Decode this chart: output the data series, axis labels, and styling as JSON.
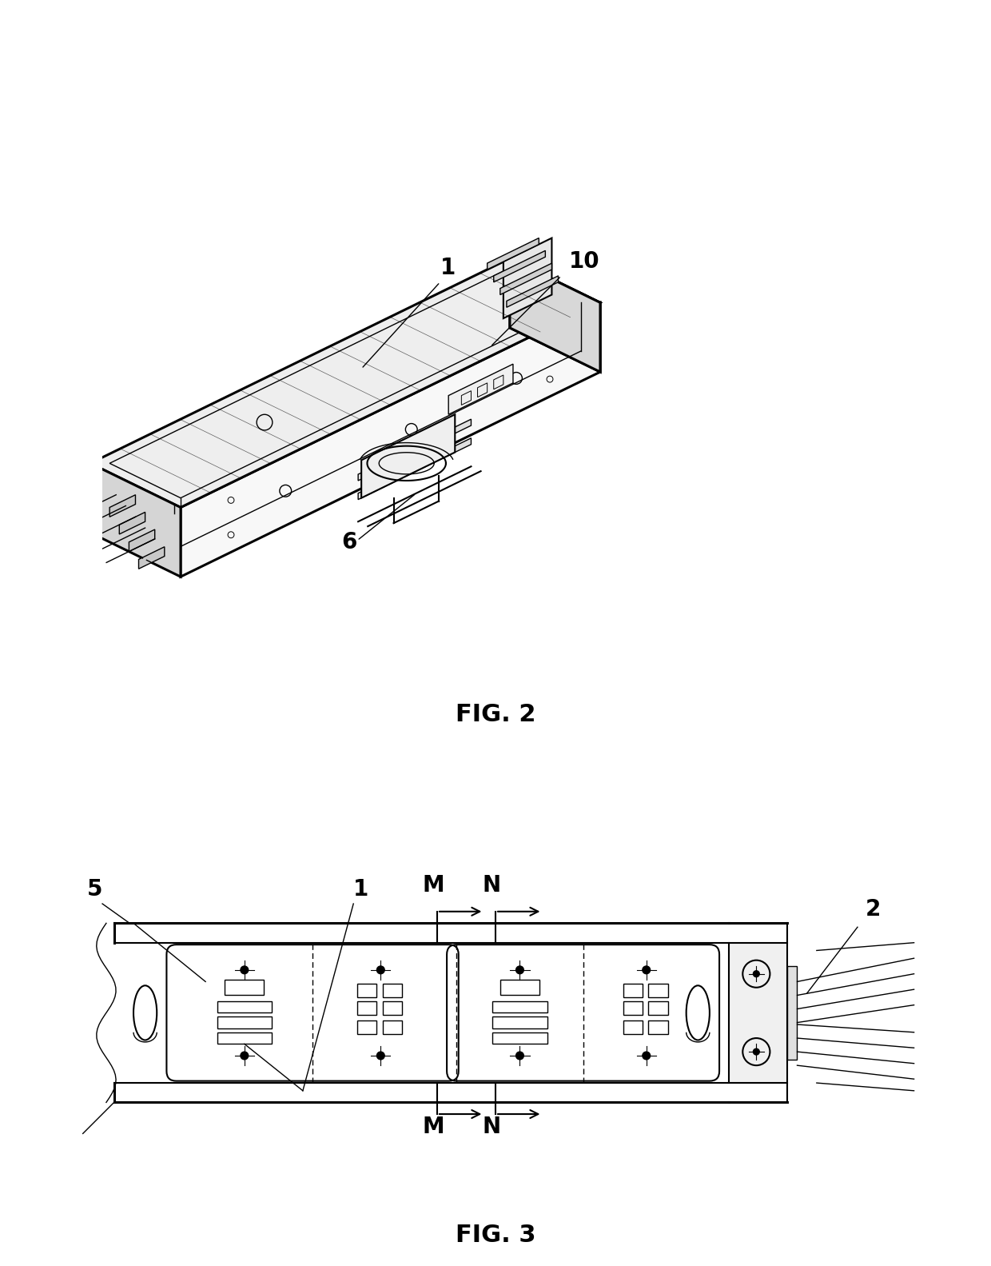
{
  "bg_color": "#ffffff",
  "line_color": "#000000",
  "fig2_label": "FIG. 2",
  "fig3_label": "FIG. 3",
  "label_1_fig2": "1",
  "label_10_fig2": "10",
  "label_6_fig2": "6",
  "label_5_fig3": "5",
  "label_1_fig3": "1",
  "label_2_fig3": "2",
  "label_M": "M",
  "label_N": "N",
  "font_size_labels": 20,
  "font_size_fig": 22,
  "font_weight": "bold"
}
